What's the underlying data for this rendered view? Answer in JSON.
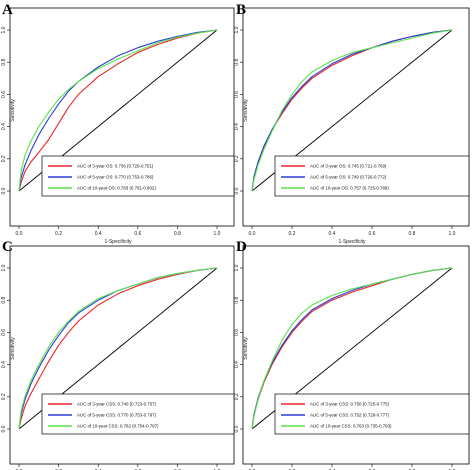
{
  "chart_data": [
    {
      "panel": "A",
      "type": "line",
      "xlabel": "1-Specificity",
      "ylabel": "Sensitivity",
      "xlim": [
        0,
        1
      ],
      "ylim": [
        0,
        1
      ],
      "xticks": [
        "0.0",
        "0.2",
        "0.4",
        "0.6",
        "0.8",
        "1.0"
      ],
      "yticks": [
        "0.0",
        "0.2",
        "0.4",
        "0.6",
        "0.8",
        "1.0"
      ],
      "diagonal": true,
      "legend": "bottom-right",
      "series": [
        {
          "name": "AUC of 3-year OS: 0.736 (0.720-0.751)",
          "color": "#e8262a",
          "x": [
            0,
            0.01,
            0.03,
            0.06,
            0.1,
            0.15,
            0.2,
            0.25,
            0.3,
            0.4,
            0.5,
            0.6,
            0.7,
            0.8,
            0.9,
            1.0
          ],
          "y": [
            0,
            0.05,
            0.12,
            0.18,
            0.24,
            0.32,
            0.42,
            0.52,
            0.6,
            0.71,
            0.79,
            0.86,
            0.91,
            0.95,
            0.98,
            1.0
          ]
        },
        {
          "name": "AUC of 5-year OS: 0.770 (0.753-0.786)",
          "color": "#2b3cd6",
          "x": [
            0,
            0.01,
            0.03,
            0.06,
            0.1,
            0.15,
            0.2,
            0.25,
            0.3,
            0.4,
            0.5,
            0.6,
            0.7,
            0.8,
            0.9,
            1.0
          ],
          "y": [
            0,
            0.08,
            0.16,
            0.25,
            0.35,
            0.45,
            0.54,
            0.62,
            0.68,
            0.77,
            0.84,
            0.89,
            0.93,
            0.96,
            0.985,
            1.0
          ]
        },
        {
          "name": "AUC of 10-year OS: 0.783 (0.761-0.802)",
          "color": "#5ae24a",
          "x": [
            0,
            0.01,
            0.03,
            0.06,
            0.1,
            0.15,
            0.2,
            0.25,
            0.3,
            0.4,
            0.5,
            0.6,
            0.7,
            0.8,
            0.9,
            1.0
          ],
          "y": [
            0,
            0.12,
            0.22,
            0.31,
            0.4,
            0.49,
            0.57,
            0.63,
            0.68,
            0.76,
            0.82,
            0.87,
            0.92,
            0.955,
            0.98,
            1.0
          ]
        }
      ]
    },
    {
      "panel": "B",
      "type": "line",
      "xlabel": "1-Specificity",
      "ylabel": "Sensitivity",
      "xlim": [
        0,
        1
      ],
      "ylim": [
        0,
        1
      ],
      "xticks": [
        "0.0",
        "0.2",
        "0.4",
        "0.6",
        "0.8",
        "1.0"
      ],
      "yticks": [
        "0.0",
        "0.2",
        "0.4",
        "0.6",
        "0.8",
        "1.0"
      ],
      "diagonal": true,
      "legend": "bottom-right",
      "series": [
        {
          "name": "AUC of 3-year OS: 0.745 (0.721-0.769)",
          "color": "#e8262a",
          "x": [
            0,
            0.01,
            0.03,
            0.06,
            0.1,
            0.15,
            0.2,
            0.25,
            0.3,
            0.4,
            0.5,
            0.6,
            0.7,
            0.8,
            0.9,
            1.0
          ],
          "y": [
            0,
            0.08,
            0.17,
            0.27,
            0.38,
            0.48,
            0.57,
            0.64,
            0.7,
            0.78,
            0.84,
            0.89,
            0.93,
            0.96,
            0.985,
            1.0
          ]
        },
        {
          "name": "AUC of 5-year OS: 0.749 (0.726-0.772)",
          "color": "#2b3cd6",
          "x": [
            0,
            0.01,
            0.03,
            0.06,
            0.1,
            0.15,
            0.2,
            0.25,
            0.3,
            0.4,
            0.5,
            0.6,
            0.7,
            0.8,
            0.9,
            1.0
          ],
          "y": [
            0,
            0.09,
            0.18,
            0.28,
            0.38,
            0.49,
            0.58,
            0.65,
            0.71,
            0.79,
            0.85,
            0.89,
            0.93,
            0.96,
            0.985,
            1.0
          ]
        },
        {
          "name": "AUC of 10-year OS: 0.757 (0.725-0.789)",
          "color": "#5ae24a",
          "x": [
            0,
            0.01,
            0.03,
            0.06,
            0.1,
            0.15,
            0.2,
            0.25,
            0.3,
            0.4,
            0.5,
            0.6,
            0.7,
            0.8,
            0.9,
            1.0
          ],
          "y": [
            0,
            0.07,
            0.16,
            0.26,
            0.37,
            0.5,
            0.6,
            0.68,
            0.74,
            0.81,
            0.86,
            0.89,
            0.92,
            0.95,
            0.98,
            1.0
          ]
        }
      ]
    },
    {
      "panel": "C",
      "type": "line",
      "xlabel": "1-Specificity",
      "ylabel": "Sensitivity",
      "xlim": [
        0,
        1
      ],
      "ylim": [
        0,
        1
      ],
      "xticks": [
        "0.0",
        "0.2",
        "0.4",
        "0.6",
        "0.8",
        "1.0"
      ],
      "yticks": [
        "0.0",
        "0.2",
        "0.4",
        "0.6",
        "0.8",
        "1.0"
      ],
      "diagonal": true,
      "legend": "bottom-right",
      "series": [
        {
          "name": "AUC of 3-year CSS: 0.740 (0.723-0.757)",
          "color": "#e8262a",
          "x": [
            0,
            0.01,
            0.03,
            0.06,
            0.1,
            0.15,
            0.2,
            0.25,
            0.3,
            0.4,
            0.5,
            0.6,
            0.7,
            0.8,
            0.9,
            1.0
          ],
          "y": [
            0,
            0.06,
            0.14,
            0.22,
            0.31,
            0.42,
            0.52,
            0.6,
            0.67,
            0.77,
            0.84,
            0.89,
            0.93,
            0.96,
            0.985,
            1.0
          ]
        },
        {
          "name": "AUC of 5-year CSS: 0.770 (0.753-0.787)",
          "color": "#2b3cd6",
          "x": [
            0,
            0.01,
            0.03,
            0.06,
            0.1,
            0.15,
            0.2,
            0.25,
            0.3,
            0.4,
            0.5,
            0.6,
            0.7,
            0.8,
            0.9,
            1.0
          ],
          "y": [
            0,
            0.09,
            0.18,
            0.28,
            0.38,
            0.49,
            0.58,
            0.66,
            0.72,
            0.8,
            0.86,
            0.9,
            0.94,
            0.965,
            0.985,
            1.0
          ]
        },
        {
          "name": "AUC of 10-year CSS: 0.782 (0.754-0.797)",
          "color": "#5ae24a",
          "x": [
            0,
            0.01,
            0.03,
            0.06,
            0.1,
            0.15,
            0.2,
            0.25,
            0.3,
            0.4,
            0.5,
            0.6,
            0.7,
            0.8,
            0.9,
            1.0
          ],
          "y": [
            0,
            0.11,
            0.2,
            0.3,
            0.4,
            0.51,
            0.6,
            0.67,
            0.73,
            0.81,
            0.86,
            0.9,
            0.94,
            0.965,
            0.985,
            1.0
          ]
        }
      ]
    },
    {
      "panel": "D",
      "type": "line",
      "xlabel": "1-Specificity",
      "ylabel": "Sensitivity",
      "xlim": [
        0,
        1
      ],
      "ylim": [
        0,
        1
      ],
      "xticks": [
        "0.0",
        "0.2",
        "0.4",
        "0.6",
        "0.8",
        "1.0"
      ],
      "yticks": [
        "0.0",
        "0.2",
        "0.4",
        "0.6",
        "0.8",
        "1.0"
      ],
      "diagonal": true,
      "legend": "bottom-right",
      "series": [
        {
          "name": "AUC of 3-year CSS: 0.750 (0.725-0.775)",
          "color": "#e8262a",
          "x": [
            0,
            0.01,
            0.03,
            0.06,
            0.1,
            0.15,
            0.2,
            0.25,
            0.3,
            0.4,
            0.5,
            0.6,
            0.7,
            0.8,
            0.9,
            1.0
          ],
          "y": [
            0,
            0.09,
            0.18,
            0.29,
            0.4,
            0.51,
            0.6,
            0.67,
            0.73,
            0.8,
            0.85,
            0.89,
            0.93,
            0.96,
            0.985,
            1.0
          ]
        },
        {
          "name": "AUC of 5-year CSS: 0.752 (0.728-0.777)",
          "color": "#2b3cd6",
          "x": [
            0,
            0.01,
            0.03,
            0.06,
            0.1,
            0.15,
            0.2,
            0.25,
            0.3,
            0.4,
            0.5,
            0.6,
            0.7,
            0.8,
            0.9,
            1.0
          ],
          "y": [
            0,
            0.09,
            0.19,
            0.3,
            0.41,
            0.52,
            0.61,
            0.68,
            0.74,
            0.81,
            0.86,
            0.9,
            0.93,
            0.96,
            0.985,
            1.0
          ]
        },
        {
          "name": "AUC of 10-year CSS: 0.763 (0.735-0.793)",
          "color": "#5ae24a",
          "x": [
            0,
            0.01,
            0.03,
            0.06,
            0.1,
            0.15,
            0.2,
            0.25,
            0.3,
            0.4,
            0.5,
            0.6,
            0.7,
            0.8,
            0.9,
            1.0
          ],
          "y": [
            0,
            0.08,
            0.18,
            0.3,
            0.42,
            0.55,
            0.65,
            0.72,
            0.77,
            0.83,
            0.87,
            0.9,
            0.93,
            0.96,
            0.985,
            1.0
          ]
        }
      ]
    }
  ]
}
